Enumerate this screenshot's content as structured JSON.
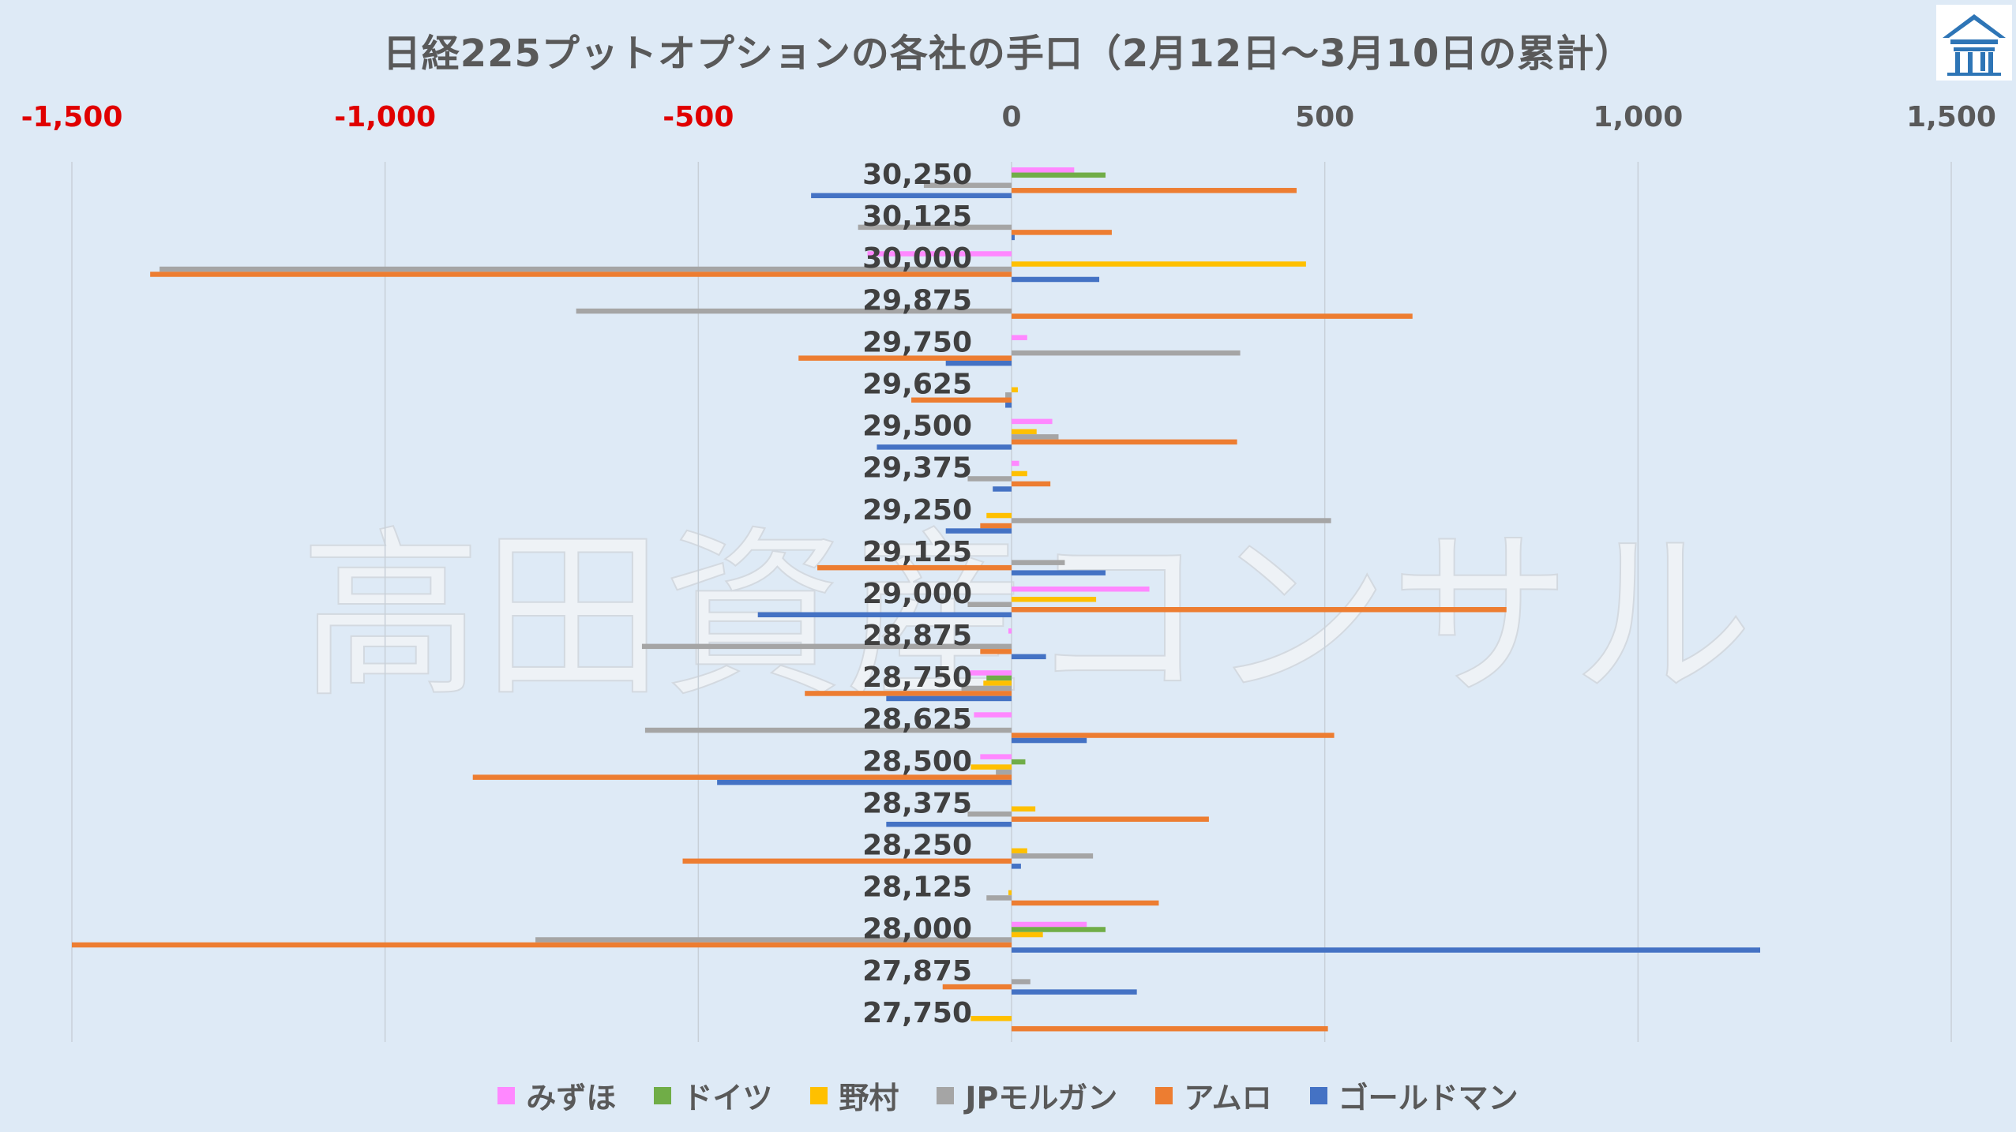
{
  "chart_data": {
    "type": "bar",
    "orientation": "horizontal",
    "title": "日経225プットオプションの各社の手口（2月12日～3月10日の累計）",
    "watermark": "高田資産コンサル",
    "xlim": [
      -1500,
      1500
    ],
    "x_ticks": [
      {
        "value": -1500,
        "label": "-1,500"
      },
      {
        "value": -1000,
        "label": "-1,000"
      },
      {
        "value": -500,
        "label": "-500"
      },
      {
        "value": 0,
        "label": "0"
      },
      {
        "value": 500,
        "label": "500"
      },
      {
        "value": 1000,
        "label": "1,000"
      },
      {
        "value": 1500,
        "label": "1,500"
      }
    ],
    "negative_tick_color": "#e00000",
    "positive_tick_color": "#595959",
    "grid": true,
    "legend_position": "bottom",
    "categories": [
      "30,250",
      "30,125",
      "30,000",
      "29,875",
      "29,750",
      "29,625",
      "29,500",
      "29,375",
      "29,250",
      "29,125",
      "29,000",
      "28,875",
      "28,750",
      "28,625",
      "28,500",
      "28,375",
      "28,250",
      "28,125",
      "28,000",
      "27,875",
      "27,750"
    ],
    "series": [
      {
        "name": "みずほ",
        "color": "#ff88ff",
        "values": [
          100,
          0,
          -230,
          0,
          25,
          0,
          65,
          12,
          0,
          0,
          220,
          -5,
          -70,
          -60,
          -50,
          0,
          0,
          0,
          120,
          0,
          0
        ]
      },
      {
        "name": "ドイツ",
        "color": "#70ad47",
        "values": [
          150,
          0,
          0,
          0,
          0,
          0,
          0,
          0,
          0,
          0,
          0,
          0,
          -40,
          0,
          22,
          0,
          0,
          0,
          150,
          0,
          0
        ]
      },
      {
        "name": "野村",
        "color": "#ffc000",
        "values": [
          0,
          0,
          470,
          0,
          0,
          10,
          40,
          25,
          -40,
          0,
          135,
          0,
          -45,
          0,
          -65,
          38,
          25,
          -5,
          50,
          0,
          -65
        ]
      },
      {
        "name": "JPモルガン",
        "color": "#a5a5a5",
        "values": [
          -140,
          -245,
          -1360,
          -695,
          365,
          -10,
          75,
          -70,
          510,
          85,
          -70,
          -590,
          -80,
          -585,
          -25,
          -70,
          130,
          -40,
          -760,
          30,
          0
        ]
      },
      {
        "name": "アムロ",
        "color": "#ed7d31",
        "values": [
          455,
          160,
          -1375,
          640,
          -340,
          -160,
          360,
          62,
          -50,
          -310,
          790,
          -50,
          -330,
          515,
          -860,
          315,
          -525,
          235,
          -1500,
          -110,
          505
        ]
      },
      {
        "name": "ゴールドマン",
        "color": "#4472c4",
        "values": [
          -320,
          5,
          140,
          0,
          -105,
          -10,
          -215,
          -30,
          -105,
          150,
          -405,
          55,
          -200,
          120,
          -470,
          -200,
          15,
          0,
          1195,
          200,
          0
        ]
      }
    ]
  }
}
